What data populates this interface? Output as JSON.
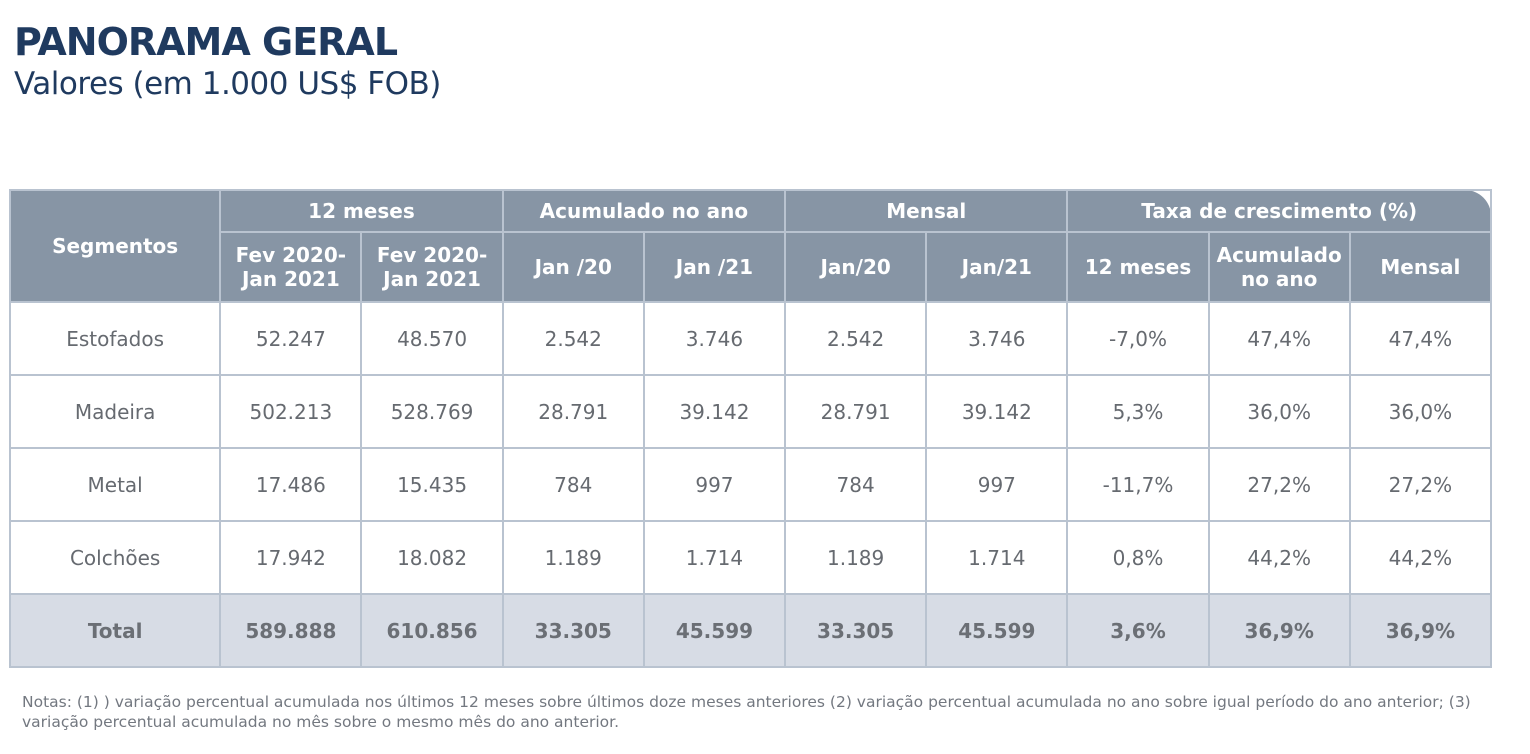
{
  "title": "PANORAMA GERAL",
  "subtitle": "Valores (em 1.000 US$ FOB)",
  "table": {
    "header_segmentos": "Segmentos",
    "groups": [
      "12 meses",
      "Acumulado no ano",
      "Mensal",
      "Taxa de crescimento (%)"
    ],
    "subheaders": [
      "Fev 2020-\nJan 2021",
      "Fev 2020-\nJan 2021",
      "Jan /20",
      "Jan /21",
      "Jan/20",
      "Jan/21",
      "12 meses",
      "Acumulado\nno ano",
      "Mensal"
    ],
    "rows": [
      {
        "segment": "Estofados",
        "values": [
          "52.247",
          "48.570",
          "2.542",
          "3.746",
          "2.542",
          "3.746",
          "-7,0%",
          "47,4%",
          "47,4%"
        ]
      },
      {
        "segment": "Madeira",
        "values": [
          "502.213",
          "528.769",
          "28.791",
          "39.142",
          "28.791",
          "39.142",
          "5,3%",
          "36,0%",
          "36,0%"
        ]
      },
      {
        "segment": "Metal",
        "values": [
          "17.486",
          "15.435",
          "784",
          "997",
          "784",
          "997",
          "-11,7%",
          "27,2%",
          "27,2%"
        ]
      },
      {
        "segment": "Colchões",
        "values": [
          "17.942",
          "18.082",
          "1.189",
          "1.714",
          "1.189",
          "1.714",
          "0,8%",
          "44,2%",
          "44,2%"
        ]
      }
    ],
    "total": {
      "segment": "Total",
      "values": [
        "589.888",
        "610.856",
        "33.305",
        "45.599",
        "33.305",
        "45.599",
        "3,6%",
        "36,9%",
        "36,9%"
      ]
    }
  },
  "notes": "Notas: (1) ) variação percentual acumulada nos últimos 12 meses sobre últimos doze meses anteriores (2) variação percentual acumulada no ano sobre igual período do ano anterior; (3) variação percentual acumulada no mês sobre o mesmo mês do ano anterior.",
  "colors": {
    "title": "#1f3a5f",
    "header_bg": "#8795a5",
    "grid": "#b9c3d0",
    "total_bg": "#d7dce5",
    "cell_text": "#666a70"
  }
}
